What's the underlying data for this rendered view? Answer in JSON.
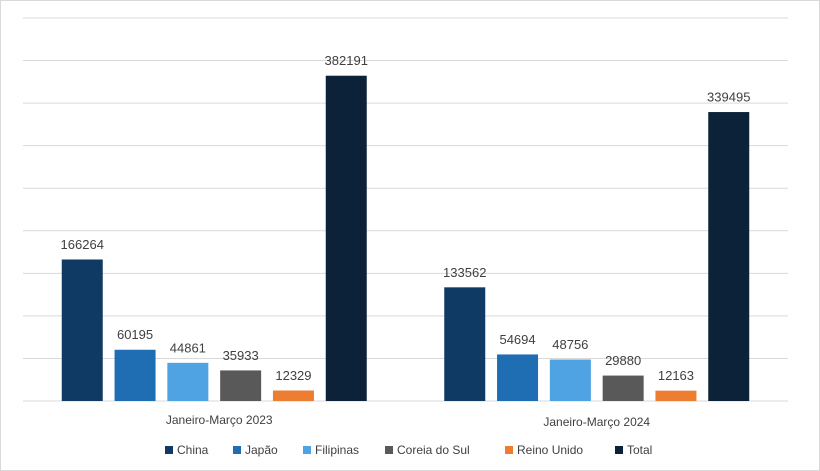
{
  "chart_data": {
    "type": "bar",
    "categories": [
      "Janeiro-Março 2023",
      "Janeiro-Março 2024"
    ],
    "series": [
      {
        "name": "China",
        "color": "#0e3a64",
        "values": [
          166264,
          133562
        ]
      },
      {
        "name": "Japão",
        "color": "#1f6db3",
        "values": [
          60195,
          54694
        ]
      },
      {
        "name": "Filipinas",
        "color": "#4fa3e3",
        "values": [
          44861,
          48756
        ]
      },
      {
        "name": "Coreia do Sul",
        "color": "#595959",
        "values": [
          35933,
          29880
        ]
      },
      {
        "name": "Reino Unido",
        "color": "#ed7d31",
        "values": [
          12329,
          12163
        ]
      },
      {
        "name": "Total",
        "color": "#0b2239",
        "values": [
          382191,
          339495
        ]
      }
    ],
    "ylim": [
      0,
      450000
    ],
    "yticks": [
      0,
      50000,
      100000,
      150000,
      200000,
      250000,
      300000,
      350000,
      400000,
      450000
    ],
    "grid": true,
    "legend": "bottom"
  }
}
